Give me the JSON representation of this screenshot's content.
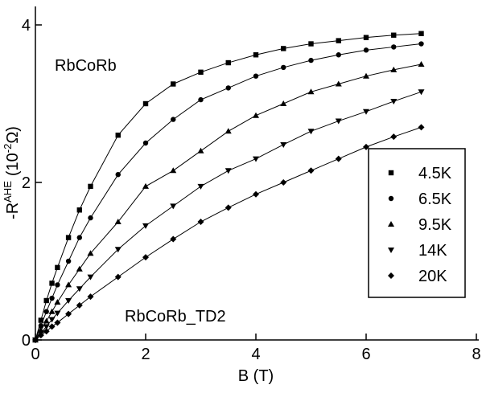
{
  "chart_data": {
    "type": "scatter",
    "xlabel": "B (T)",
    "ylabel": [
      "-R",
      "AHE",
      "(10",
      "-2",
      "Ω)"
    ],
    "annotations": [
      "RbCoRb",
      "RbCoRb_TD2"
    ],
    "x": [
      0,
      0.1,
      0.2,
      0.3,
      0.4,
      0.6,
      0.8,
      1,
      1.5,
      2,
      2.5,
      3,
      3.5,
      4,
      4.5,
      5,
      5.5,
      6,
      6.5,
      7
    ],
    "series": [
      {
        "name": "4.5K",
        "marker": "square",
        "color": "#000000",
        "values": [
          0,
          0.25,
          0.5,
          0.72,
          0.92,
          1.3,
          1.65,
          1.95,
          2.6,
          3.0,
          3.25,
          3.4,
          3.52,
          3.62,
          3.7,
          3.76,
          3.8,
          3.84,
          3.87,
          3.89
        ]
      },
      {
        "name": "6.5K",
        "marker": "circle",
        "color": "#000000",
        "values": [
          0,
          0.18,
          0.36,
          0.53,
          0.7,
          1.0,
          1.3,
          1.55,
          2.1,
          2.5,
          2.8,
          3.05,
          3.2,
          3.35,
          3.46,
          3.55,
          3.62,
          3.68,
          3.72,
          3.76
        ]
      },
      {
        "name": "9.5K",
        "marker": "triangle-up",
        "color": "#000000",
        "values": [
          0,
          0.12,
          0.24,
          0.36,
          0.48,
          0.7,
          0.9,
          1.1,
          1.5,
          1.95,
          2.15,
          2.4,
          2.65,
          2.85,
          3.0,
          3.15,
          3.25,
          3.35,
          3.43,
          3.5
        ]
      },
      {
        "name": "14K",
        "marker": "triangle-down",
        "color": "#000000",
        "values": [
          0,
          0.09,
          0.17,
          0.26,
          0.34,
          0.5,
          0.65,
          0.8,
          1.15,
          1.45,
          1.7,
          1.95,
          2.15,
          2.3,
          2.48,
          2.65,
          2.78,
          2.9,
          3.03,
          3.15
        ]
      },
      {
        "name": "20K",
        "marker": "diamond",
        "color": "#000000",
        "values": [
          0,
          0.06,
          0.11,
          0.17,
          0.22,
          0.33,
          0.44,
          0.55,
          0.8,
          1.05,
          1.28,
          1.5,
          1.68,
          1.85,
          2.0,
          2.15,
          2.3,
          2.45,
          2.58,
          2.7
        ]
      }
    ],
    "xlim": [
      0,
      8
    ],
    "xticks": [
      0,
      2,
      4,
      6,
      8
    ],
    "ylim": [
      0,
      4
    ],
    "yticks": [
      0,
      2,
      4
    ],
    "legend": "right"
  }
}
